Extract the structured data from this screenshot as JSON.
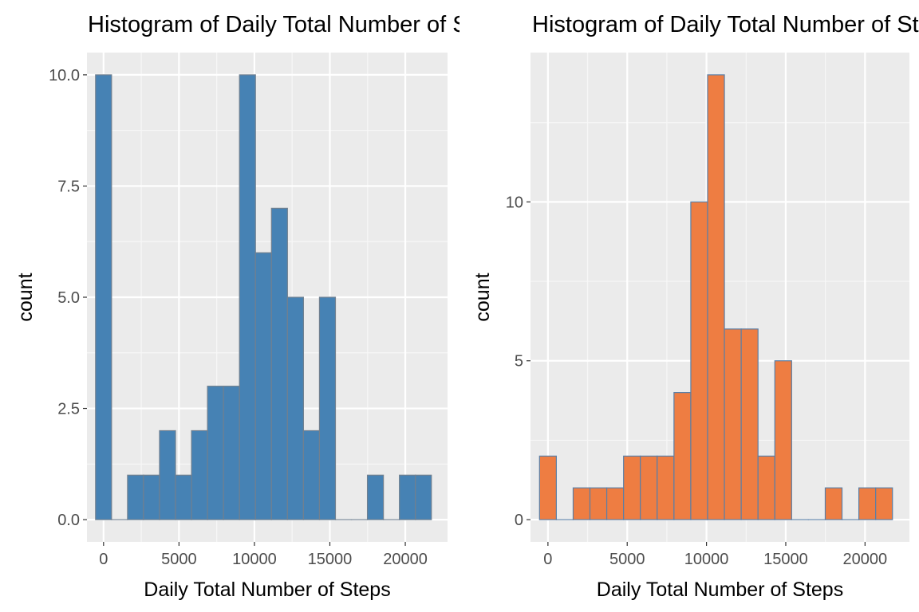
{
  "chart_data": [
    {
      "type": "bar",
      "title": "Histogram of Daily Total Number of Steps",
      "xlabel": "Daily Total Number of Steps",
      "ylabel": "count",
      "fill": "#4682B4",
      "outline": "#708090",
      "bin_width": 1060,
      "bin_centers": [
        0,
        1060,
        2120,
        3180,
        4240,
        5300,
        6360,
        7420,
        8480,
        9540,
        10600,
        11660,
        12720,
        13780,
        14840,
        15900,
        16960,
        18020,
        19080,
        20140,
        21200
      ],
      "values": [
        10,
        0,
        1,
        1,
        2,
        1,
        2,
        3,
        3,
        10,
        6,
        7,
        5,
        2,
        5,
        0,
        0,
        1,
        0,
        1,
        1
      ],
      "xlim": [
        -1100,
        22800
      ],
      "ylim": [
        -0.5,
        10.5
      ],
      "x_ticks": [
        0,
        5000,
        10000,
        15000,
        20000
      ],
      "x_tick_labels": [
        "0",
        "5000",
        "10000",
        "15000",
        "20000"
      ],
      "y_ticks": [
        0,
        2.5,
        5,
        7.5,
        10
      ],
      "y_tick_labels": [
        "0.0",
        "2.5",
        "5.0",
        "7.5",
        "10.0"
      ],
      "grid": true
    },
    {
      "type": "bar",
      "title": "Histogram of Daily Total Number of Steps",
      "xlabel": "Daily Total Number of Steps",
      "ylabel": "count",
      "fill": "#EE7D42",
      "outline": "#5B7FA6",
      "bin_width": 1060,
      "bin_centers": [
        0,
        1060,
        2120,
        3180,
        4240,
        5300,
        6360,
        7420,
        8480,
        9540,
        10600,
        11660,
        12720,
        13780,
        14840,
        15900,
        16960,
        18020,
        19080,
        20140,
        21200
      ],
      "values": [
        2,
        0,
        1,
        1,
        1,
        2,
        2,
        2,
        4,
        10,
        14,
        6,
        6,
        2,
        5,
        0,
        0,
        1,
        0,
        1,
        1
      ],
      "xlim": [
        -1100,
        22800
      ],
      "ylim": [
        -0.7,
        14.7
      ],
      "x_ticks": [
        0,
        5000,
        10000,
        15000,
        20000
      ],
      "x_tick_labels": [
        "0",
        "5000",
        "10000",
        "15000",
        "20000"
      ],
      "y_ticks": [
        0,
        5,
        10
      ],
      "y_tick_labels": [
        "0",
        "5",
        "10"
      ],
      "grid": true
    }
  ]
}
